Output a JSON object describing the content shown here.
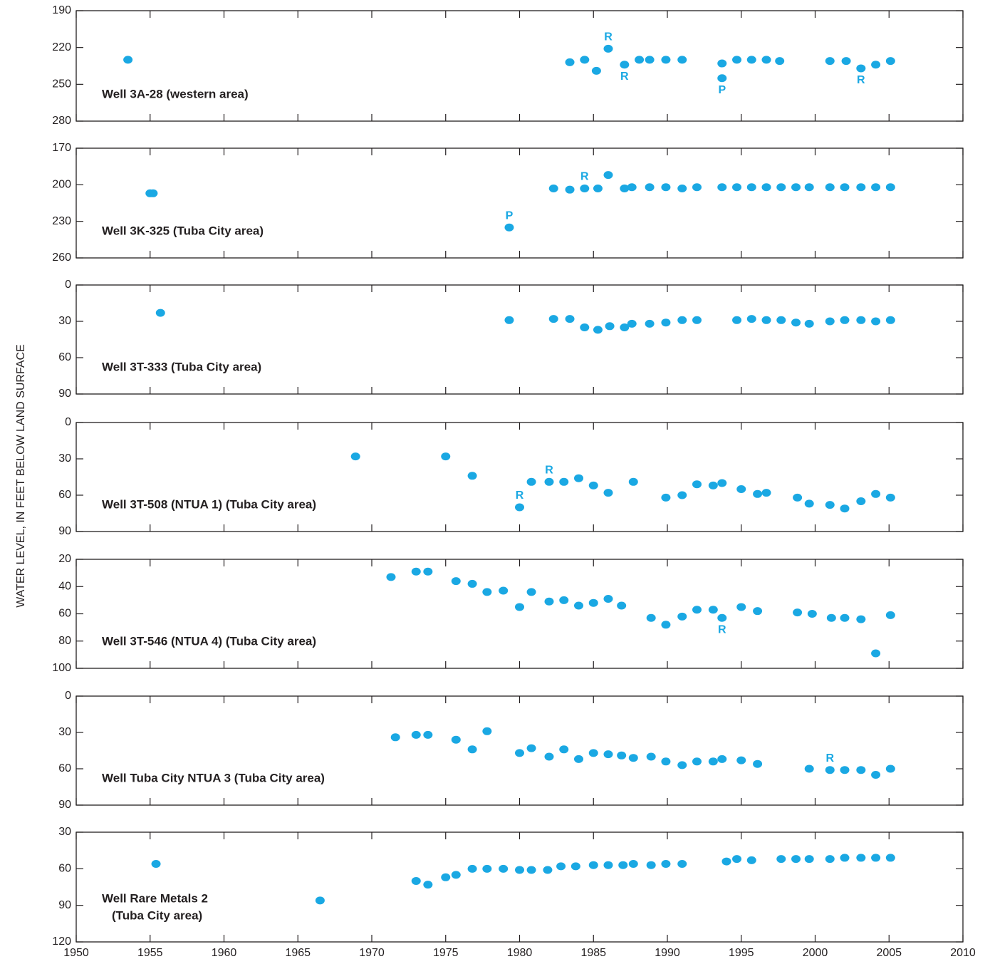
{
  "y_label": "WATER LEVEL, IN FEET BELOW LAND SURFACE",
  "chart_data": [
    {
      "type": "scatter",
      "title": "Well 3A-28 (western area)",
      "color": "#1aa8e3",
      "x": [
        1953.5,
        1983.4,
        1984.4,
        1985.2,
        1986.0,
        1987.1,
        1988.1,
        1988.8,
        1989.9,
        1991.0,
        1993.7,
        1993.7,
        1994.7,
        1995.7,
        1996.7,
        1997.6,
        2001.0,
        2002.1,
        2003.1,
        2004.1,
        2005.1
      ],
      "values": [
        230,
        232,
        230,
        239,
        221,
        234,
        230,
        230,
        230,
        230,
        233,
        245,
        230,
        230,
        230,
        231,
        231,
        231,
        237,
        234,
        231
      ],
      "annotations": [
        {
          "text": "R",
          "point": 4,
          "position": "above"
        },
        {
          "text": "R",
          "point": 5,
          "position": "below"
        },
        {
          "text": "P",
          "point": 11,
          "position": "below"
        },
        {
          "text": "R",
          "point": 18,
          "position": "below"
        }
      ],
      "ylim": [
        190,
        280
      ],
      "yticks": [
        190,
        220,
        250,
        280
      ],
      "y_inverted": true,
      "xlim": [
        1950,
        2010
      ],
      "xticks": [
        1950,
        1955,
        1960,
        1965,
        1970,
        1975,
        1980,
        1985,
        1990,
        1995,
        2000,
        2005,
        2010
      ],
      "show_xtick_labels": false
    },
    {
      "type": "scatter",
      "title": "Well 3K-325 (Tuba City area)",
      "color": "#1aa8e3",
      "x": [
        1955.0,
        1955.2,
        1979.3,
        1982.3,
        1983.4,
        1984.4,
        1985.3,
        1986.0,
        1987.1,
        1987.6,
        1988.8,
        1989.9,
        1991.0,
        1992.0,
        1993.7,
        1994.7,
        1995.7,
        1996.7,
        1997.7,
        1998.7,
        1999.6,
        2001.0,
        2002.0,
        2003.1,
        2004.1,
        2005.1
      ],
      "values": [
        207,
        207,
        235,
        203,
        204,
        203,
        203,
        192,
        203,
        202,
        202,
        202,
        203,
        202,
        202,
        202,
        202,
        202,
        202,
        202,
        202,
        202,
        202,
        202,
        202,
        202
      ],
      "annotations": [
        {
          "text": "P",
          "point": 2,
          "position": "above"
        },
        {
          "text": "R",
          "point": 5,
          "position": "above"
        }
      ],
      "ylim": [
        170,
        260
      ],
      "yticks": [
        170,
        200,
        230,
        260
      ],
      "y_inverted": true,
      "xlim": [
        1950,
        2010
      ],
      "xticks": [
        1950,
        1955,
        1960,
        1965,
        1970,
        1975,
        1980,
        1985,
        1990,
        1995,
        2000,
        2005,
        2010
      ],
      "show_xtick_labels": false
    },
    {
      "type": "scatter",
      "title": "Well 3T-333 (Tuba City area)",
      "color": "#1aa8e3",
      "x": [
        1955.7,
        1979.3,
        1982.3,
        1983.4,
        1984.4,
        1985.3,
        1986.1,
        1987.1,
        1987.6,
        1988.8,
        1989.9,
        1991.0,
        1992.0,
        1994.7,
        1995.7,
        1996.7,
        1997.7,
        1998.7,
        1999.6,
        2001.0,
        2002.0,
        2003.1,
        2004.1,
        2005.1
      ],
      "values": [
        23,
        29,
        28,
        28,
        35,
        37,
        34,
        35,
        32,
        32,
        31,
        29,
        29,
        29,
        28,
        29,
        29,
        31,
        32,
        30,
        29,
        29,
        30,
        29
      ],
      "annotations": [],
      "ylim": [
        0,
        90
      ],
      "yticks": [
        0,
        30,
        60,
        90
      ],
      "y_inverted": true,
      "xlim": [
        1950,
        2010
      ],
      "xticks": [
        1950,
        1955,
        1960,
        1965,
        1970,
        1975,
        1980,
        1985,
        1990,
        1995,
        2000,
        2005,
        2010
      ],
      "show_xtick_labels": false
    },
    {
      "type": "scatter",
      "title": "Well 3T-508 (NTUA 1) (Tuba City area)",
      "color": "#1aa8e3",
      "x": [
        1968.9,
        1975.0,
        1976.8,
        1980.0,
        1980.8,
        1982.0,
        1983.0,
        1984.0,
        1985.0,
        1986.0,
        1987.7,
        1989.9,
        1991.0,
        1992.0,
        1993.1,
        1993.7,
        1995.0,
        1996.1,
        1996.7,
        1998.8,
        1999.6,
        2001.0,
        2002.0,
        2003.1,
        2004.1,
        2005.1
      ],
      "values": [
        28,
        28,
        44,
        70,
        49,
        49,
        49,
        46,
        52,
        58,
        49,
        62,
        60,
        51,
        52,
        50,
        55,
        59,
        58,
        62,
        67,
        68,
        71,
        65,
        59,
        62
      ],
      "annotations": [
        {
          "text": "R",
          "point": 3,
          "position": "above"
        },
        {
          "text": "R",
          "point": 5,
          "position": "above"
        }
      ],
      "ylim": [
        0,
        90
      ],
      "yticks": [
        0,
        30,
        60,
        90
      ],
      "y_inverted": true,
      "xlim": [
        1950,
        2010
      ],
      "xticks": [
        1950,
        1955,
        1960,
        1965,
        1970,
        1975,
        1980,
        1985,
        1990,
        1995,
        2000,
        2005,
        2010
      ],
      "show_xtick_labels": false
    },
    {
      "type": "scatter",
      "title": "Well 3T-546 (NTUA 4) (Tuba City area)",
      "color": "#1aa8e3",
      "x": [
        1971.3,
        1973.0,
        1973.8,
        1975.7,
        1976.8,
        1977.8,
        1978.9,
        1980.0,
        1980.8,
        1982.0,
        1983.0,
        1984.0,
        1985.0,
        1986.0,
        1986.9,
        1988.9,
        1989.9,
        1991.0,
        1992.0,
        1993.1,
        1993.7,
        1995.0,
        1996.1,
        1998.8,
        1999.8,
        2001.1,
        2002.0,
        2003.1,
        2004.1,
        2005.1
      ],
      "values": [
        33,
        29,
        29,
        36,
        38,
        44,
        43,
        55,
        44,
        51,
        50,
        54,
        52,
        49,
        54,
        63,
        68,
        62,
        57,
        57,
        63,
        55,
        58,
        59,
        60,
        63,
        63,
        64,
        89,
        61
      ],
      "annotations": [
        {
          "text": "R",
          "point": 20,
          "position": "below"
        }
      ],
      "ylim": [
        20,
        100
      ],
      "yticks": [
        20,
        40,
        60,
        80,
        100
      ],
      "y_inverted": true,
      "xlim": [
        1950,
        2010
      ],
      "xticks": [
        1950,
        1955,
        1960,
        1965,
        1970,
        1975,
        1980,
        1985,
        1990,
        1995,
        2000,
        2005,
        2010
      ],
      "show_xtick_labels": false
    },
    {
      "type": "scatter",
      "title": "Well Tuba City NTUA 3 (Tuba City area)",
      "color": "#1aa8e3",
      "x": [
        1971.6,
        1973.0,
        1973.8,
        1975.7,
        1976.8,
        1977.8,
        1980.0,
        1980.8,
        1982.0,
        1983.0,
        1984.0,
        1985.0,
        1986.0,
        1986.9,
        1987.7,
        1988.9,
        1989.9,
        1991.0,
        1992.0,
        1993.1,
        1993.7,
        1995.0,
        1996.1,
        1999.6,
        2001.0,
        2002.0,
        2003.1,
        2004.1,
        2005.1
      ],
      "values": [
        34,
        32,
        32,
        36,
        44,
        29,
        47,
        43,
        50,
        44,
        52,
        47,
        48,
        49,
        51,
        50,
        54,
        57,
        54,
        54,
        52,
        53,
        56,
        60,
        61,
        61,
        61,
        65,
        60
      ],
      "annotations": [
        {
          "text": "R",
          "point": 24,
          "position": "above"
        }
      ],
      "ylim": [
        0,
        90
      ],
      "yticks": [
        0,
        30,
        60,
        90
      ],
      "y_inverted": true,
      "xlim": [
        1950,
        2010
      ],
      "xticks": [
        1950,
        1955,
        1960,
        1965,
        1970,
        1975,
        1980,
        1985,
        1990,
        1995,
        2000,
        2005,
        2010
      ],
      "show_xtick_labels": false
    },
    {
      "type": "scatter",
      "title": [
        "Well Rare Metals 2",
        "(Tuba City area)"
      ],
      "color": "#1aa8e3",
      "x": [
        1955.4,
        1966.5,
        1973.0,
        1973.8,
        1975.0,
        1975.7,
        1976.8,
        1977.8,
        1978.9,
        1980.0,
        1980.8,
        1981.9,
        1982.8,
        1983.8,
        1985.0,
        1986.0,
        1987.0,
        1987.7,
        1988.9,
        1989.9,
        1991.0,
        1994.0,
        1994.7,
        1995.7,
        1997.7,
        1998.7,
        1999.6,
        2001.0,
        2002.0,
        2003.1,
        2004.1,
        2005.1
      ],
      "values": [
        56,
        86,
        70,
        73,
        67,
        65,
        60,
        60,
        60,
        61,
        61,
        61,
        58,
        58,
        57,
        57,
        57,
        56,
        57,
        56,
        56,
        54,
        52,
        53,
        52,
        52,
        52,
        52,
        51,
        51,
        51,
        51
      ],
      "annotations": [],
      "ylim": [
        30,
        120
      ],
      "yticks": [
        30,
        60,
        90,
        120
      ],
      "y_inverted": true,
      "xlim": [
        1950,
        2010
      ],
      "xticks": [
        1950,
        1955,
        1960,
        1965,
        1970,
        1975,
        1980,
        1985,
        1990,
        1995,
        2000,
        2005,
        2010
      ],
      "show_xtick_labels": true
    }
  ]
}
